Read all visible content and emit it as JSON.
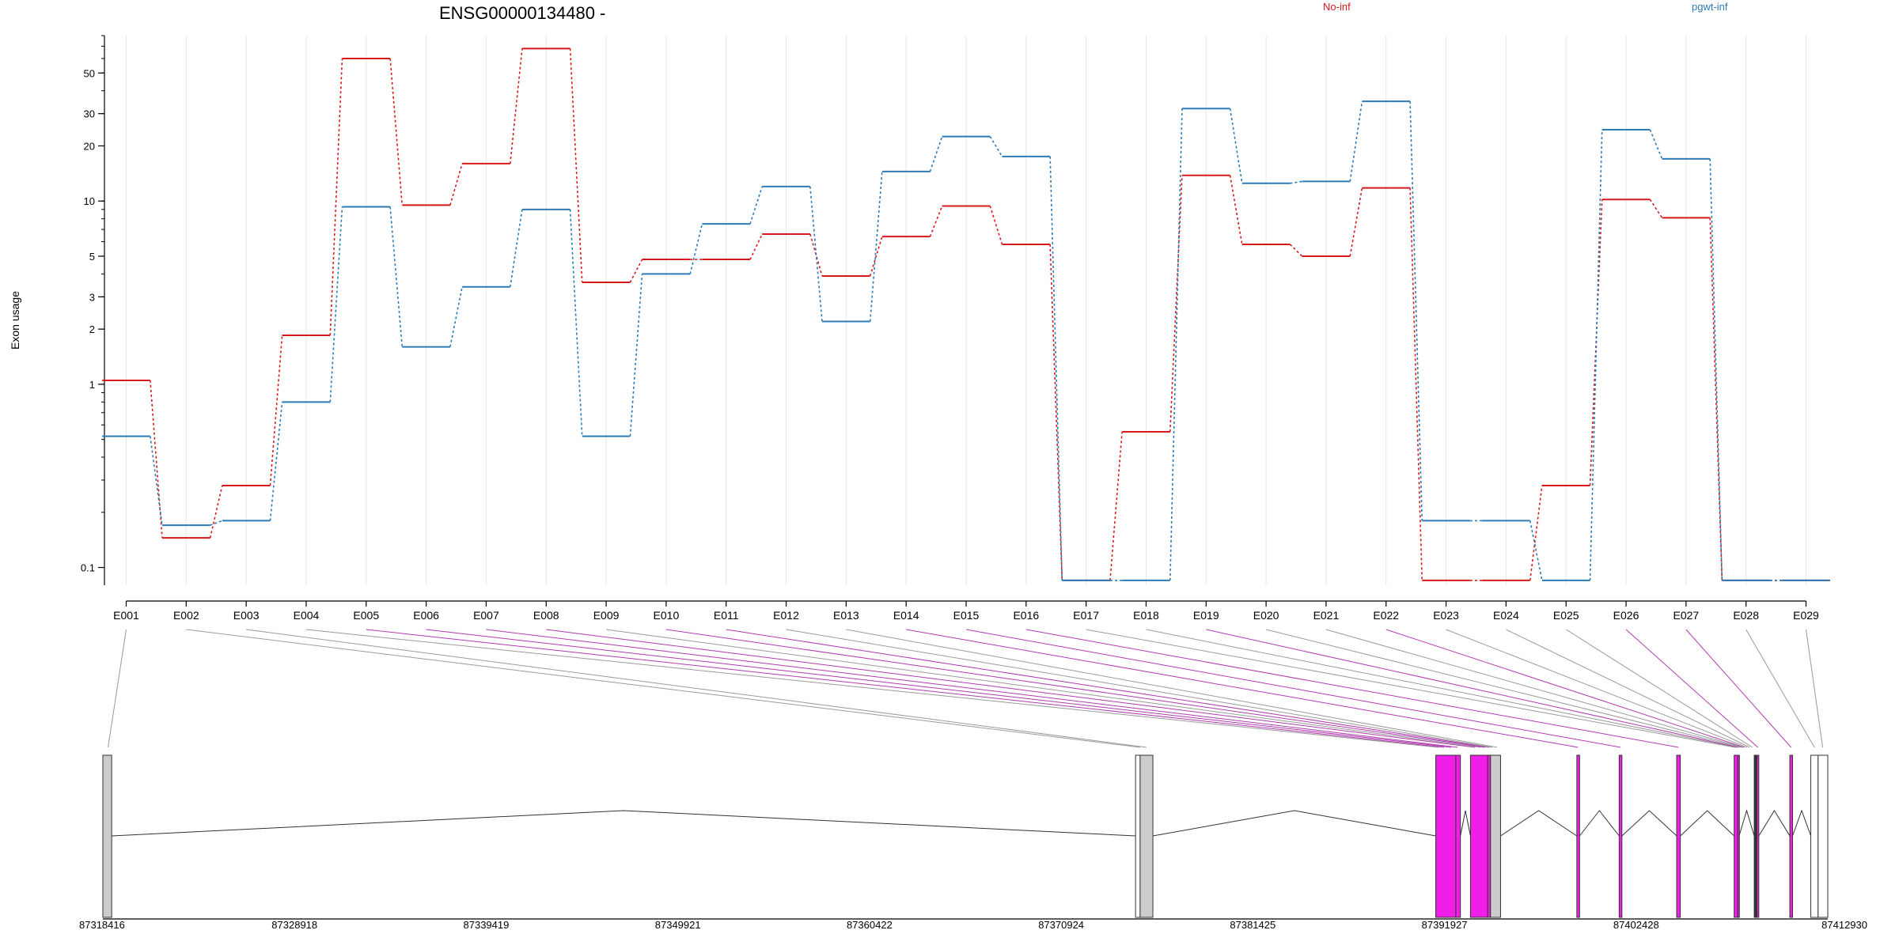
{
  "chart_data": {
    "type": "line",
    "title": "ENSG00000134480 -",
    "ylabel": "Exon usage",
    "y_scale": "log",
    "ylim": [
      0.08,
      80
    ],
    "y_ticks": [
      0.1,
      1,
      2,
      3,
      5,
      10,
      20,
      30,
      50
    ],
    "y_tick_labels": [
      "0.1",
      "1",
      "2",
      "3",
      "5",
      "10",
      "20",
      "30",
      "50"
    ],
    "categories": [
      "E001",
      "E002",
      "E003",
      "E004",
      "E005",
      "E006",
      "E007",
      "E008",
      "E009",
      "E010",
      "E011",
      "E012",
      "E013",
      "E014",
      "E015",
      "E016",
      "E017",
      "E018",
      "E019",
      "E020",
      "E021",
      "E022",
      "E023",
      "E024",
      "E025",
      "E026",
      "E027",
      "E028",
      "E029"
    ],
    "series": [
      {
        "name": "No-inf",
        "color": "#d7191c",
        "values": [
          1.05,
          0.145,
          0.28,
          1.85,
          60,
          9.5,
          16,
          68,
          3.6,
          4.8,
          4.8,
          6.6,
          3.9,
          6.4,
          9.4,
          5.8,
          0.085,
          0.55,
          13.8,
          5.8,
          5.0,
          11.8,
          0.085,
          0.085,
          0.28,
          10.2,
          8.1,
          0.085,
          0.085
        ]
      },
      {
        "name": "pgwt-inf",
        "color": "#2c7bb6",
        "values": [
          0.52,
          0.17,
          0.18,
          0.8,
          9.3,
          1.6,
          3.4,
          9.0,
          0.52,
          4.0,
          7.5,
          12.0,
          2.2,
          14.5,
          22.5,
          17.5,
          0.085,
          0.085,
          32,
          12.5,
          12.8,
          35,
          0.18,
          0.18,
          0.085,
          24.5,
          17,
          0.085,
          0.085
        ]
      }
    ],
    "genomic_axis": {
      "range": [
        87318416,
        87412930
      ],
      "ticks": [
        87318416,
        87328918,
        87339419,
        87349921,
        87360422,
        87370924,
        87381425,
        87391927,
        87402428,
        87412930
      ],
      "tick_labels": [
        "87318416",
        "87328918",
        "87339419",
        "87349921",
        "87360422",
        "87370924",
        "87381425",
        "87391927",
        "87402428",
        "87412930"
      ]
    },
    "exon_blocks": [
      {
        "start": 87318416,
        "end": 87318900,
        "type": "grey"
      },
      {
        "start": 87375000,
        "end": 87375250,
        "type": "white"
      },
      {
        "start": 87375250,
        "end": 87375950,
        "type": "grey"
      },
      {
        "start": 87391450,
        "end": 87392550,
        "type": "magenta"
      },
      {
        "start": 87392550,
        "end": 87392800,
        "type": "magenta"
      },
      {
        "start": 87393350,
        "end": 87394300,
        "type": "magenta"
      },
      {
        "start": 87394300,
        "end": 87394450,
        "type": "magenta"
      },
      {
        "start": 87394450,
        "end": 87395000,
        "type": "grey"
      },
      {
        "start": 87399180,
        "end": 87399330,
        "type": "magenta"
      },
      {
        "start": 87401500,
        "end": 87401650,
        "type": "magenta"
      },
      {
        "start": 87404650,
        "end": 87404850,
        "type": "magenta"
      },
      {
        "start": 87407800,
        "end": 87408000,
        "type": "magenta"
      },
      {
        "start": 87408000,
        "end": 87408070,
        "type": "magenta"
      },
      {
        "start": 87408900,
        "end": 87409050,
        "type": "dark"
      },
      {
        "start": 87409050,
        "end": 87409150,
        "type": "magenta"
      },
      {
        "start": 87410850,
        "end": 87411000,
        "type": "magenta"
      },
      {
        "start": 87412000,
        "end": 87412400,
        "type": "white"
      },
      {
        "start": 87412400,
        "end": 87412930,
        "type": "white"
      }
    ],
    "exon_map": [
      {
        "exon": "E001",
        "pos": 87318700,
        "color": "grey"
      },
      {
        "exon": "E002",
        "pos": 87375250,
        "color": "grey"
      },
      {
        "exon": "E003",
        "pos": 87375600,
        "color": "grey"
      },
      {
        "exon": "E004",
        "pos": 87391600,
        "color": "grey"
      },
      {
        "exon": "E005",
        "pos": 87391900,
        "color": "magenta"
      },
      {
        "exon": "E006",
        "pos": 87392300,
        "color": "magenta"
      },
      {
        "exon": "E007",
        "pos": 87392650,
        "color": "magenta"
      },
      {
        "exon": "E008",
        "pos": 87393600,
        "color": "magenta"
      },
      {
        "exon": "E009",
        "pos": 87393900,
        "color": "grey"
      },
      {
        "exon": "E010",
        "pos": 87394150,
        "color": "magenta"
      },
      {
        "exon": "E011",
        "pos": 87394370,
        "color": "magenta"
      },
      {
        "exon": "E012",
        "pos": 87394550,
        "color": "grey"
      },
      {
        "exon": "E013",
        "pos": 87394800,
        "color": "grey"
      },
      {
        "exon": "E014",
        "pos": 87399250,
        "color": "magenta"
      },
      {
        "exon": "E015",
        "pos": 87401580,
        "color": "magenta"
      },
      {
        "exon": "E016",
        "pos": 87404750,
        "color": "magenta"
      },
      {
        "exon": "E017",
        "pos": 87407850,
        "color": "grey"
      },
      {
        "exon": "E018",
        "pos": 87407950,
        "color": "grey"
      },
      {
        "exon": "E019",
        "pos": 87408030,
        "color": "magenta"
      },
      {
        "exon": "E020",
        "pos": 87408150,
        "color": "grey"
      },
      {
        "exon": "E021",
        "pos": 87408250,
        "color": "grey"
      },
      {
        "exon": "E022",
        "pos": 87408350,
        "color": "magenta"
      },
      {
        "exon": "E023",
        "pos": 87408500,
        "color": "grey"
      },
      {
        "exon": "E024",
        "pos": 87408650,
        "color": "grey"
      },
      {
        "exon": "E025",
        "pos": 87408800,
        "color": "grey"
      },
      {
        "exon": "E026",
        "pos": 87409100,
        "color": "magenta"
      },
      {
        "exon": "E027",
        "pos": 87410920,
        "color": "magenta"
      },
      {
        "exon": "E028",
        "pos": 87412200,
        "color": "grey"
      },
      {
        "exon": "E029",
        "pos": 87412650,
        "color": "grey"
      }
    ],
    "grid": true,
    "legend_placement": "top"
  }
}
